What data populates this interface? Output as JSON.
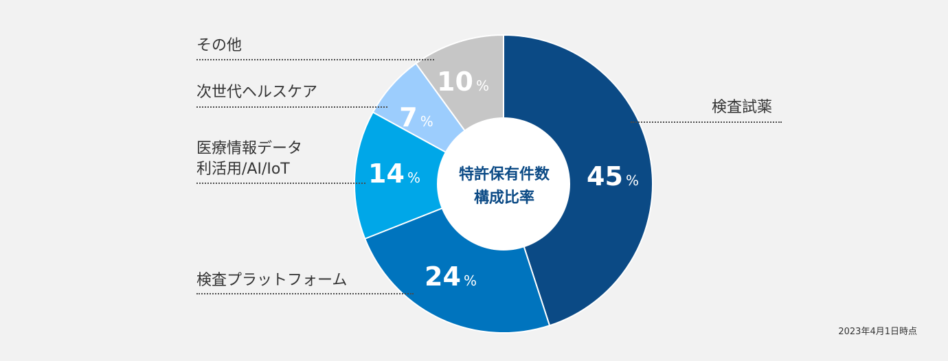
{
  "chart_data": {
    "type": "pie",
    "title": "特許保有件数 構成比率",
    "center_lines": [
      "特許保有件数",
      "構成比率"
    ],
    "slices": [
      {
        "label": "検査試薬",
        "value": 45,
        "color": "#0b4a85"
      },
      {
        "label": "検査プラットフォーム",
        "value": 24,
        "color": "#0074be"
      },
      {
        "label": "医療情報データ利活用/AI/IoT",
        "label_lines": [
          "医療情報データ",
          "利活用/AI/IoT"
        ],
        "value": 14,
        "color": "#00a7e8"
      },
      {
        "label": "次世代ヘルスケア",
        "value": 7,
        "color": "#9ccdfd"
      },
      {
        "label": "その他",
        "value": 10,
        "color": "#c6c6c6"
      }
    ],
    "unit": "%"
  },
  "footnote": "2023年4月1日時点"
}
